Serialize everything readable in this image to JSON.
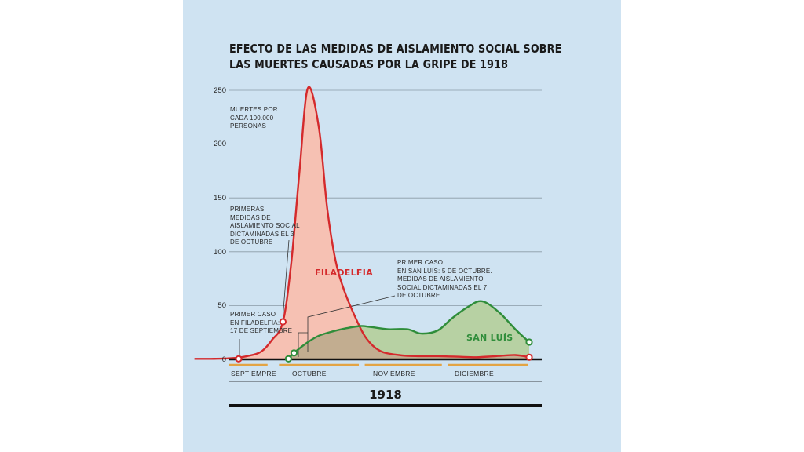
{
  "colors": {
    "background": "#cfe3f2",
    "filadelfia": "#d42a2c",
    "filadelfia_fill": "#f6c1b3",
    "san_luis": "#2f8d3a",
    "san_luis_fill": "#b7d1a3",
    "overlap_fill": "#c2ad90",
    "month_bar": "#e3a444",
    "axis": "#111111",
    "grid": "#8a9aa6"
  },
  "chart_data": {
    "type": "area",
    "title": "EFECTO DE LAS MEDIDAS DE AISLAMIENTO SOCIAL SOBRE LAS MUERTES CAUSADAS POR LA GRIPE DE 1918",
    "title_lines": [
      "EFECTO DE LAS MEDIDAS DE AISLAMIENTO SOCIAL SOBRE",
      "LAS MUERTES CAUSADAS POR LA GRIPE DE 1918"
    ],
    "ylabel_lines": [
      "MUERTES POR",
      "CADA 100.000",
      "PERSONAS"
    ],
    "xlabel": "1918",
    "ylim": [
      0,
      250
    ],
    "yticks": [
      "250",
      "200",
      "150",
      "100",
      "50",
      "0"
    ],
    "ytick_values": [
      250,
      200,
      150,
      100,
      50,
      0
    ],
    "grid": true,
    "months": [
      "SEPTIEMPRE",
      "OCTUBRE",
      "NOVIEMBRE",
      "DICIEMBRE"
    ],
    "series": [
      {
        "name": "FILADELFIA",
        "x": [
          "1918-09-01",
          "1918-09-07",
          "1918-09-14",
          "1918-09-20",
          "1918-09-25",
          "1918-09-29",
          "1918-10-03",
          "1918-10-06",
          "1918-10-09",
          "1918-10-12",
          "1918-10-16",
          "1918-10-19",
          "1918-10-22",
          "1918-10-25",
          "1918-10-29",
          "1918-11-02",
          "1918-11-07",
          "1918-11-14",
          "1918-11-21",
          "1918-11-28",
          "1918-12-05",
          "1918-12-12",
          "1918-12-19",
          "1918-12-26",
          "1918-12-31"
        ],
        "values": [
          0.5,
          0.5,
          1,
          3,
          7,
          18,
          35,
          90,
          175,
          252,
          215,
          140,
          92,
          65,
          40,
          20,
          8,
          4,
          3,
          3,
          2.5,
          2,
          3,
          4,
          2
        ]
      },
      {
        "name": "SAN LUÍS",
        "x": [
          "1918-10-05",
          "1918-10-07",
          "1918-10-12",
          "1918-10-16",
          "1918-10-21",
          "1918-10-26",
          "1918-10-31",
          "1918-11-04",
          "1918-11-10",
          "1918-11-17",
          "1918-11-22",
          "1918-11-28",
          "1918-12-03",
          "1918-12-09",
          "1918-12-14",
          "1918-12-20",
          "1918-12-26",
          "1918-12-31"
        ],
        "values": [
          0.5,
          6,
          16,
          22,
          26,
          29,
          31,
          30,
          28,
          28,
          24,
          27,
          38,
          49,
          54,
          44,
          28,
          16
        ]
      }
    ],
    "markers": [
      {
        "series": "FILADELFIA",
        "date": "1918-09-17",
        "value": 0.5
      },
      {
        "series": "FILADELFIA",
        "date": "1918-10-03",
        "value": 35
      },
      {
        "series": "FILADELFIA",
        "date": "1918-12-31",
        "value": 2
      },
      {
        "series": "SAN LUÍS",
        "date": "1918-10-05",
        "value": 0.5
      },
      {
        "series": "SAN LUÍS",
        "date": "1918-10-07",
        "value": 6
      },
      {
        "series": "SAN LUÍS",
        "date": "1918-12-31",
        "value": 16
      }
    ],
    "annotations": [
      {
        "lines": [
          "PRIMERAS",
          "MEDIDAS DE",
          "AISLAMIENTO SOCIAL",
          "DICTAMINADAS EL 3",
          "DE OCTUBRE"
        ]
      },
      {
        "lines": [
          "PRIMER CASO",
          "EN FILADELFIA:",
          "17 DE SEPTIEMBRE"
        ]
      },
      {
        "lines": [
          "PRIMER CASO",
          "EN SAN LUÍS: 5 DE OCTUBRE.",
          "MEDIDAS DE AISLAMIENTO",
          "SOCIAL DICTAMINADAS EL 7",
          "DE OCTUBRE"
        ]
      }
    ]
  }
}
